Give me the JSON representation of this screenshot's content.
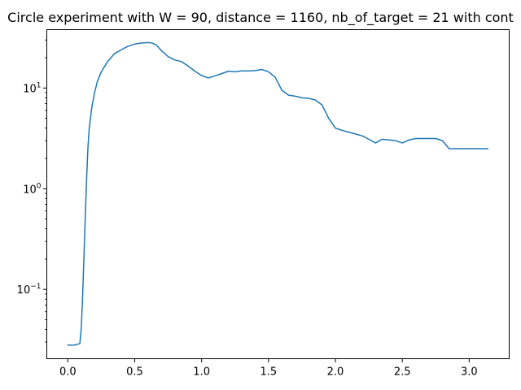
{
  "chart_data": {
    "type": "line",
    "title": "Circle experiment with W = 90, distance = 1160, nb_of_target = 21 with cont",
    "xlabel": "",
    "ylabel": "",
    "yscale": "log",
    "xlim": [
      -0.157,
      3.299
    ],
    "ylim": [
      0.0205,
      38
    ],
    "grid": false,
    "x_ticks": [
      0.0,
      0.5,
      1.0,
      1.5,
      2.0,
      2.5,
      3.0
    ],
    "x_tick_labels": [
      "0.0",
      "0.5",
      "1.0",
      "1.5",
      "2.0",
      "2.5",
      "3.0"
    ],
    "y_ticks": [
      0.1,
      1,
      10
    ],
    "y_tick_labels": [
      {
        "base": "10",
        "exp": "−1"
      },
      {
        "base": "10",
        "exp": "0"
      },
      {
        "base": "10",
        "exp": "1"
      }
    ],
    "series": [
      {
        "color": "#1f77b4",
        "x": [
          0.0,
          0.05,
          0.09,
          0.1,
          0.11,
          0.12,
          0.13,
          0.14,
          0.15,
          0.16,
          0.18,
          0.2,
          0.22,
          0.25,
          0.3,
          0.35,
          0.4,
          0.45,
          0.5,
          0.55,
          0.6,
          0.63,
          0.66,
          0.7,
          0.75,
          0.8,
          0.85,
          0.9,
          0.95,
          1.0,
          1.05,
          1.1,
          1.15,
          1.2,
          1.25,
          1.3,
          1.35,
          1.4,
          1.45,
          1.5,
          1.55,
          1.6,
          1.65,
          1.7,
          1.75,
          1.8,
          1.85,
          1.9,
          1.95,
          2.0,
          2.05,
          2.1,
          2.15,
          2.2,
          2.25,
          2.3,
          2.35,
          2.4,
          2.45,
          2.5,
          2.55,
          2.6,
          2.65,
          2.7,
          2.75,
          2.8,
          2.85,
          2.9,
          2.95,
          3.0,
          3.05,
          3.1,
          3.14
        ],
        "y": [
          0.028,
          0.028,
          0.029,
          0.04,
          0.08,
          0.2,
          0.5,
          1.2,
          2.5,
          4.0,
          6.5,
          9.0,
          11.5,
          14.5,
          18.5,
          22.0,
          24.0,
          26.0,
          27.3,
          28.0,
          28.3,
          28.0,
          26.8,
          23.5,
          20.5,
          19.0,
          18.3,
          16.5,
          14.7,
          13.3,
          12.6,
          13.2,
          13.9,
          14.7,
          14.5,
          14.8,
          14.8,
          14.9,
          15.3,
          14.5,
          12.8,
          9.5,
          8.5,
          8.3,
          8.0,
          7.9,
          7.6,
          6.8,
          5.0,
          4.0,
          3.8,
          3.65,
          3.5,
          3.35,
          3.1,
          2.85,
          3.1,
          3.05,
          3.0,
          2.85,
          3.05,
          3.15,
          3.15,
          3.15,
          3.15,
          3.0,
          2.5,
          2.5,
          2.5,
          2.5,
          2.5,
          2.5,
          2.5
        ]
      }
    ]
  }
}
